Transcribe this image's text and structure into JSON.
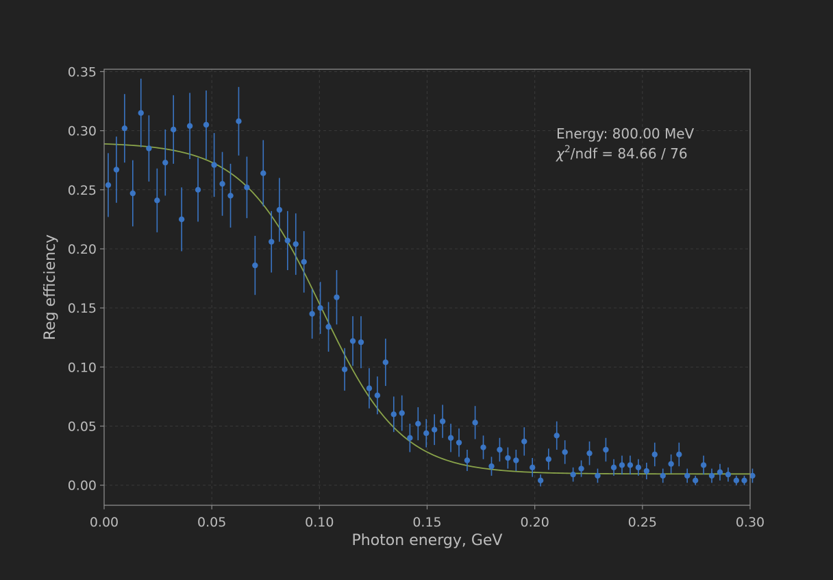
{
  "chart_data": {
    "type": "scatter",
    "xlabel": "Photon energy, GeV",
    "ylabel": "Reg efficiency",
    "xlim": [
      0.0,
      0.3
    ],
    "ylim": [
      -0.017,
      0.352
    ],
    "x_ticks": [
      "0.00",
      "0.05",
      "0.10",
      "0.15",
      "0.20",
      "0.25",
      "0.30"
    ],
    "y_ticks": [
      "0.00",
      "0.05",
      "0.10",
      "0.15",
      "0.20",
      "0.25",
      "0.30",
      "0.35"
    ],
    "grid": true,
    "annotation": {
      "energy_text": "Energy: 800.00 MeV",
      "chi_symbol": "χ",
      "chi_exp": "2",
      "chi_text": "/ndf = 84.66 / 76"
    },
    "colors": {
      "background": "#222222",
      "points": "#3a75c4",
      "fit": "#8aa44a",
      "axes": "#8c8c8c",
      "text": "#bdbdbd",
      "grid": "#3a3a3a"
    },
    "series": [
      {
        "kind": "points_with_errors",
        "x": [
          0.0019,
          0.0057,
          0.0095,
          0.0133,
          0.0171,
          0.0208,
          0.0246,
          0.0284,
          0.0322,
          0.036,
          0.0398,
          0.0436,
          0.0474,
          0.0511,
          0.0549,
          0.0587,
          0.0625,
          0.0663,
          0.0701,
          0.0739,
          0.0777,
          0.0814,
          0.0852,
          0.089,
          0.0928,
          0.0966,
          0.1004,
          0.1042,
          0.108,
          0.1117,
          0.1155,
          0.1193,
          0.1231,
          0.1269,
          0.1307,
          0.1345,
          0.1383,
          0.142,
          0.1458,
          0.1496,
          0.1534,
          0.1572,
          0.161,
          0.1648,
          0.1686,
          0.1723,
          0.1761,
          0.1799,
          0.1837,
          0.1875,
          0.1913,
          0.1951,
          0.1989,
          0.2027,
          0.2064,
          0.2102,
          0.214,
          0.2178,
          0.2216,
          0.2254,
          0.2292,
          0.233,
          0.2367,
          0.2405,
          0.2443,
          0.2481,
          0.2519,
          0.2557,
          0.2595,
          0.2633,
          0.267,
          0.2708,
          0.2746,
          0.2784,
          0.2822,
          0.286,
          0.2898,
          0.2936,
          0.2973,
          0.3011
        ],
        "y": [
          0.254,
          0.267,
          0.302,
          0.247,
          0.315,
          0.285,
          0.241,
          0.273,
          0.301,
          0.225,
          0.304,
          0.25,
          0.305,
          0.271,
          0.255,
          0.245,
          0.308,
          0.252,
          0.186,
          0.264,
          0.206,
          0.233,
          0.207,
          0.204,
          0.189,
          0.145,
          0.15,
          0.134,
          0.159,
          0.098,
          0.122,
          0.121,
          0.082,
          0.076,
          0.104,
          0.06,
          0.061,
          0.04,
          0.052,
          0.044,
          0.047,
          0.054,
          0.04,
          0.036,
          0.021,
          0.053,
          0.032,
          0.016,
          0.03,
          0.023,
          0.021,
          0.037,
          0.015,
          0.004,
          0.022,
          0.042,
          0.028,
          0.009,
          0.014,
          0.027,
          0.008,
          0.03,
          0.015,
          0.017,
          0.017,
          0.015,
          0.012,
          0.026,
          0.008,
          0.018,
          0.026,
          0.008,
          0.004,
          0.017,
          0.008,
          0.011,
          0.009,
          0.004,
          0.004,
          0.008
        ],
        "yerr": [
          0.027,
          0.028,
          0.029,
          0.028,
          0.029,
          0.028,
          0.027,
          0.028,
          0.029,
          0.027,
          0.028,
          0.027,
          0.029,
          0.027,
          0.027,
          0.027,
          0.029,
          0.026,
          0.025,
          0.028,
          0.026,
          0.027,
          0.025,
          0.026,
          0.026,
          0.021,
          0.022,
          0.021,
          0.023,
          0.018,
          0.021,
          0.022,
          0.017,
          0.016,
          0.02,
          0.015,
          0.015,
          0.012,
          0.014,
          0.012,
          0.013,
          0.014,
          0.012,
          0.012,
          0.009,
          0.014,
          0.01,
          0.008,
          0.01,
          0.009,
          0.009,
          0.012,
          0.008,
          0.005,
          0.009,
          0.012,
          0.01,
          0.006,
          0.007,
          0.01,
          0.006,
          0.01,
          0.007,
          0.008,
          0.008,
          0.007,
          0.007,
          0.01,
          0.006,
          0.008,
          0.01,
          0.006,
          0.004,
          0.008,
          0.006,
          0.007,
          0.006,
          0.004,
          0.004,
          0.006
        ]
      },
      {
        "kind": "fit_curve",
        "model": "sigmoid",
        "params": {
          "baseline": 0.0095,
          "amplitude": 0.2805,
          "center": 0.101,
          "width": 0.0185
        }
      }
    ]
  }
}
